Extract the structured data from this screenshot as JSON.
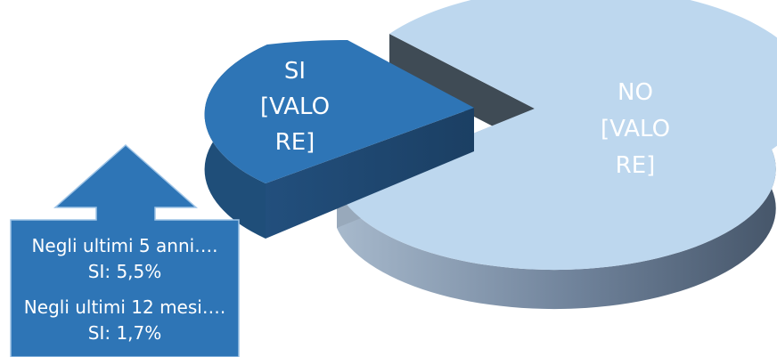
{
  "chart_data": {
    "type": "pie",
    "title": "",
    "slices": [
      {
        "category": "NO",
        "value": null,
        "label_lines": [
          "NO",
          "[VALO",
          "RE]"
        ],
        "color_top": "#bdd7ee",
        "color_side": "#8496b0"
      },
      {
        "category": "SI",
        "value": null,
        "label_lines": [
          "SI",
          "[VALO",
          "RE]"
        ],
        "color_top": "#2e75b6",
        "color_side": "#1f4e79"
      }
    ],
    "legend": "none"
  },
  "callout": {
    "lines": [
      "Negli ultimi 5 anni….",
      "SI:  5,5%",
      "Negli ultimi 12 mesi….",
      "SI: 1,7%"
    ],
    "color": "#2e75b6"
  }
}
